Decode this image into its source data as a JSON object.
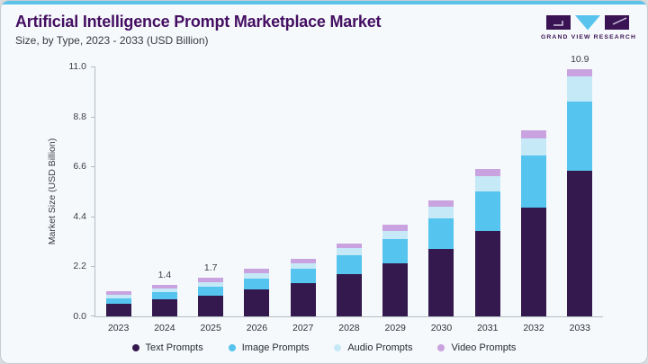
{
  "page": {
    "title": "Artificial Intelligence Prompt Marketplace Market",
    "subtitle": "Size, by Type, 2023 - 2033 (USD Billion)",
    "accent_color": "#5bc2ea",
    "brand_color": "#3a1354",
    "brand": {
      "name": "GRAND VIEW RESEARCH"
    }
  },
  "chart_data": {
    "type": "bar",
    "stacked": true,
    "title": "Artificial Intelligence Prompt Marketplace Market Size, by Type, 2023 - 2033 (USD Billion)",
    "categories": [
      "2023",
      "2024",
      "2025",
      "2026",
      "2027",
      "2028",
      "2029",
      "2030",
      "2031",
      "2032",
      "2033"
    ],
    "series": [
      {
        "name": "Text Prompts",
        "color": "#33194d",
        "values": [
          0.57,
          0.75,
          0.9,
          1.18,
          1.45,
          1.85,
          2.35,
          2.95,
          3.75,
          4.8,
          6.4
        ]
      },
      {
        "name": "Image Prompts",
        "color": "#55c4ee",
        "values": [
          0.23,
          0.3,
          0.4,
          0.48,
          0.63,
          0.85,
          1.05,
          1.38,
          1.75,
          2.3,
          3.05
        ]
      },
      {
        "name": "Audio Prompts",
        "color": "#c6e9f8",
        "values": [
          0.15,
          0.18,
          0.22,
          0.25,
          0.26,
          0.29,
          0.35,
          0.5,
          0.67,
          0.73,
          1.12
        ]
      },
      {
        "name": "Video Prompts",
        "color": "#c9a3df",
        "values": [
          0.15,
          0.17,
          0.18,
          0.19,
          0.21,
          0.23,
          0.28,
          0.28,
          0.33,
          0.37,
          0.33
        ]
      }
    ],
    "totals": [
      1.1,
      1.4,
      1.7,
      2.1,
      2.55,
      3.22,
      4.03,
      5.11,
      6.5,
      8.2,
      10.9
    ],
    "bar_labels": {
      "2024": "1.4",
      "2025": "1.7",
      "2033": "10.9"
    },
    "xlabel": "",
    "ylabel": "Market Size (USD Billion)",
    "ylim": [
      0,
      11.0
    ],
    "yticks": [
      "0.0",
      "2.2",
      "4.4",
      "6.6",
      "8.8",
      "11.0"
    ],
    "grid": false,
    "legend_position": "bottom"
  }
}
